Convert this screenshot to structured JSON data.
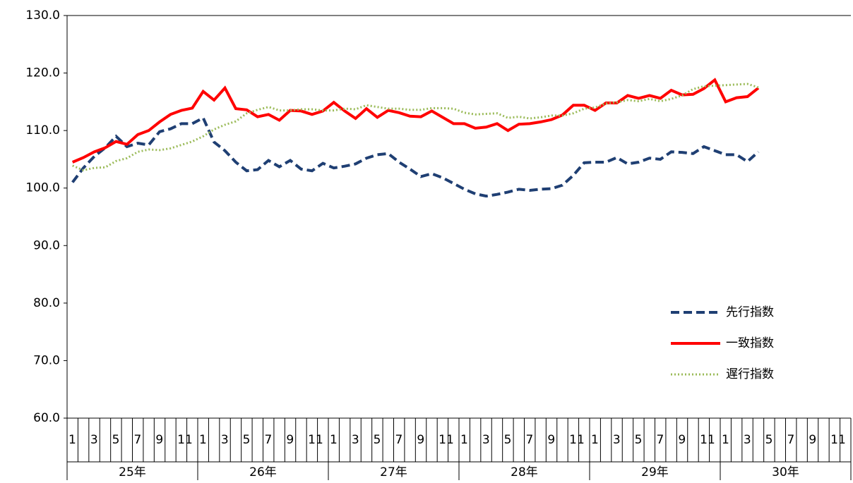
{
  "chart_data": {
    "type": "line",
    "categories": [
      "1",
      null,
      "3",
      null,
      "5",
      null,
      "7",
      null,
      "9",
      null,
      "11",
      null,
      "1",
      null,
      "3",
      null,
      "5",
      null,
      "7",
      null,
      "9",
      null,
      "11",
      null,
      "1",
      null,
      "3",
      null,
      "5",
      null,
      "7",
      null,
      "9",
      null,
      "11",
      null,
      "1",
      null,
      "3",
      null,
      "5",
      null,
      "7",
      null,
      "9",
      null,
      "11",
      null,
      "1",
      null,
      "3",
      null,
      "5",
      null,
      "7",
      null,
      "9",
      null,
      "11",
      null,
      "1",
      null,
      "3",
      null,
      "5",
      null,
      "7",
      null,
      "9",
      null,
      "11",
      null
    ],
    "year_groups": [
      "25年",
      "26年",
      "27年",
      "28年",
      "29年",
      "30年"
    ],
    "series": [
      {
        "name": "先行指数",
        "color": "#1f3f73",
        "dash": "dashed",
        "values": [
          101.0,
          103.5,
          105.5,
          107.0,
          109.0,
          107.2,
          107.8,
          107.5,
          109.8,
          110.3,
          111.2,
          111.2,
          112.2,
          108.0,
          106.5,
          104.5,
          103.0,
          103.2,
          104.8,
          103.7,
          104.8,
          103.3,
          103.0,
          104.3,
          103.5,
          103.8,
          104.2,
          105.2,
          105.8,
          106.0,
          104.5,
          103.3,
          102.0,
          102.5,
          101.8,
          100.8,
          99.8,
          99.0,
          98.6,
          98.9,
          99.3,
          99.8,
          99.6,
          99.8,
          99.9,
          100.5,
          102.2,
          104.4,
          104.5,
          104.5,
          105.3,
          104.2,
          104.5,
          105.2,
          105.0,
          106.3,
          106.2,
          106.0,
          107.2,
          106.5,
          105.8,
          105.8,
          104.6,
          106.3,
          null,
          null,
          null,
          null,
          null,
          null,
          null,
          null
        ]
      },
      {
        "name": "一致指数",
        "color": "#ff0000",
        "dash": "solid",
        "values": [
          104.5,
          105.3,
          106.3,
          107.0,
          108.1,
          107.6,
          109.3,
          110.0,
          111.5,
          112.8,
          113.5,
          113.9,
          116.8,
          115.3,
          117.4,
          113.8,
          113.6,
          112.4,
          112.8,
          111.8,
          113.5,
          113.4,
          112.8,
          113.4,
          114.9,
          113.4,
          112.1,
          113.8,
          112.3,
          113.5,
          113.1,
          112.5,
          112.4,
          113.4,
          112.3,
          111.2,
          111.2,
          110.4,
          110.6,
          111.2,
          110.0,
          111.1,
          111.2,
          111.5,
          111.9,
          112.7,
          114.4,
          114.4,
          113.5,
          114.8,
          114.8,
          116.1,
          115.6,
          116.1,
          115.6,
          117.0,
          116.2,
          116.3,
          117.3,
          118.8,
          115.0,
          115.7,
          115.9,
          117.4,
          null,
          null,
          null,
          null,
          null,
          null,
          null,
          null
        ]
      },
      {
        "name": "遅行指数",
        "color": "#9bbb59",
        "dash": "dotted",
        "values": [
          103.9,
          103.1,
          103.5,
          103.6,
          104.7,
          105.2,
          106.3,
          106.7,
          106.6,
          106.9,
          107.5,
          108.1,
          109.0,
          110.2,
          111.0,
          111.6,
          113.0,
          113.6,
          114.1,
          113.5,
          113.5,
          113.7,
          113.7,
          113.5,
          113.5,
          113.8,
          113.7,
          114.4,
          114.1,
          113.8,
          113.8,
          113.6,
          113.6,
          113.9,
          113.9,
          113.8,
          113.1,
          112.8,
          112.9,
          113.0,
          112.2,
          112.4,
          112.1,
          112.3,
          112.6,
          112.6,
          113.0,
          113.8,
          114.0,
          114.7,
          114.9,
          115.3,
          115.1,
          115.5,
          115.1,
          115.5,
          116.1,
          117.2,
          117.7,
          117.8,
          117.9,
          118.0,
          118.1,
          117.5,
          null,
          null,
          null,
          null,
          null,
          null,
          null,
          null
        ]
      }
    ],
    "ylim": [
      60,
      130
    ],
    "yticks": [
      {
        "value": 60,
        "label": "60.0"
      },
      {
        "value": 70,
        "label": "70.0"
      },
      {
        "value": 80,
        "label": "80.0"
      },
      {
        "value": 90,
        "label": "90.0"
      },
      {
        "value": 100,
        "label": "100.0"
      },
      {
        "value": 110,
        "label": "110.0"
      },
      {
        "value": 120,
        "label": "120.0"
      },
      {
        "value": 130,
        "label": "130.0"
      }
    ],
    "grid": false,
    "legend": "right"
  }
}
